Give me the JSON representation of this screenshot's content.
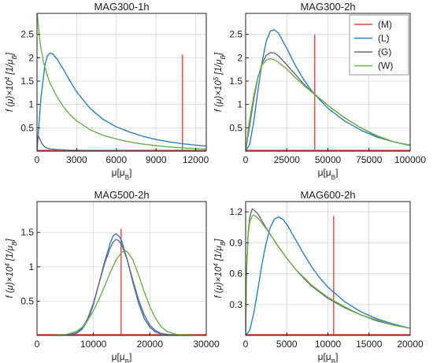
{
  "colors": {
    "M": "#e8453c",
    "L": "#2d7fc9",
    "G": "#6b6b80",
    "W": "#6fb04a",
    "grid": "#d9d9d9",
    "frame": "#222222"
  },
  "legend": {
    "placement": "top-right",
    "panel": 1,
    "entries": [
      {
        "key": "M",
        "label": "(M)"
      },
      {
        "key": "L",
        "label": "(L)"
      },
      {
        "key": "G",
        "label": "(G)"
      },
      {
        "key": "W",
        "label": "(W)"
      }
    ]
  },
  "chart_data": [
    {
      "type": "line",
      "title": "MAG300-1h",
      "xlabel": "μ[μ",
      "xlabel_sub": "B",
      "xlabel_tail": "]",
      "ylabel": "f (μ)×10",
      "ylabel_exp": "4",
      "ylabel_unit": " [1/μ",
      "ylabel_unit_sub": "B",
      "ylabel_tail": "]",
      "xlim": [
        0,
        12800
      ],
      "ylim": [
        0,
        2.95
      ],
      "xticks": [
        0,
        3000,
        6000,
        9000,
        12000
      ],
      "xticklabels": [
        "0",
        "3000",
        "6000",
        "9000",
        "12000"
      ],
      "yticks": [
        0.5,
        1,
        1.5,
        2,
        2.5
      ],
      "yticklabels": [
        "0.5",
        "1",
        "1.5",
        "2",
        "2.5"
      ],
      "grid": true,
      "series": [
        {
          "key": "M",
          "spike": true,
          "x": 11000,
          "height": 2.07
        },
        {
          "key": "L",
          "x": [
            0,
            300,
            600,
            800,
            1000,
            1200,
            1500,
            2000,
            2500,
            3000,
            4000,
            5000,
            6000,
            7000,
            8000,
            9000,
            10000,
            11000,
            12000,
            12800
          ],
          "y": [
            0,
            1.15,
            1.85,
            2.05,
            2.1,
            2.08,
            1.98,
            1.75,
            1.5,
            1.27,
            0.92,
            0.68,
            0.52,
            0.41,
            0.32,
            0.25,
            0.2,
            0.16,
            0.13,
            0.11
          ]
        },
        {
          "key": "G",
          "x": [
            0,
            50,
            100,
            200,
            300,
            400,
            600,
            800,
            1000,
            1500,
            2000,
            3000,
            4000,
            6000,
            8000,
            12800
          ],
          "y": [
            0,
            0.3,
            0.33,
            0.27,
            0.2,
            0.15,
            0.09,
            0.06,
            0.05,
            0.035,
            0.028,
            0.018,
            0.012,
            0.007,
            0.004,
            0.002
          ]
        },
        {
          "key": "W",
          "x": [
            20,
            100,
            200,
            300,
            500,
            800,
            1000,
            1500,
            2000,
            2500,
            3000,
            4000,
            5000,
            6000,
            7000,
            8000,
            9000,
            10000,
            11000,
            12000,
            12800
          ],
          "y": [
            2.95,
            2.7,
            2.4,
            2.2,
            1.9,
            1.6,
            1.45,
            1.17,
            0.95,
            0.78,
            0.65,
            0.46,
            0.34,
            0.26,
            0.2,
            0.15,
            0.12,
            0.09,
            0.07,
            0.055,
            0.045
          ]
        }
      ]
    },
    {
      "type": "line",
      "title": "MAG300-2h",
      "xlabel": "μ[μ",
      "xlabel_sub": "B",
      "xlabel_tail": "]",
      "ylabel": "f (μ)×10",
      "ylabel_exp": "5",
      "ylabel_unit": " [1/μ",
      "ylabel_unit_sub": "B",
      "ylabel_tail": "]",
      "xlim": [
        0,
        100000
      ],
      "ylim": [
        0,
        2.95
      ],
      "xticks": [
        0,
        25000,
        50000,
        75000,
        100000
      ],
      "xticklabels": [
        "0",
        "25000",
        "50000",
        "75000",
        "100000"
      ],
      "yticks": [
        0.5,
        1,
        1.5,
        2,
        2.5
      ],
      "yticklabels": [
        "0.5",
        "1",
        "1.5",
        "2",
        "2.5"
      ],
      "grid": true,
      "series": [
        {
          "key": "M",
          "spike": true,
          "x": 42000,
          "height": 2.5
        },
        {
          "key": "L",
          "x": [
            0,
            2500,
            5000,
            7500,
            10000,
            12500,
            15000,
            17500,
            20000,
            25000,
            30000,
            35000,
            40000,
            45000,
            50000,
            60000,
            70000,
            80000,
            90000,
            100000
          ],
          "y": [
            0,
            0.15,
            0.65,
            1.3,
            1.9,
            2.35,
            2.57,
            2.6,
            2.53,
            2.2,
            1.85,
            1.55,
            1.3,
            1.1,
            0.92,
            0.65,
            0.45,
            0.3,
            0.2,
            0.13
          ]
        },
        {
          "key": "G",
          "x": [
            0,
            2000,
            5000,
            7500,
            10000,
            12500,
            15000,
            17500,
            20000,
            25000,
            30000,
            35000,
            40000,
            50000,
            60000,
            70000,
            80000,
            90000,
            100000
          ],
          "y": [
            0,
            0.45,
            1.12,
            1.58,
            1.88,
            2.05,
            2.11,
            2.1,
            2.04,
            1.85,
            1.65,
            1.45,
            1.28,
            0.98,
            0.72,
            0.5,
            0.32,
            0.2,
            0.12
          ]
        },
        {
          "key": "W",
          "x": [
            0,
            2000,
            5000,
            7500,
            10000,
            12500,
            15000,
            17500,
            20000,
            25000,
            30000,
            35000,
            40000,
            50000,
            60000,
            70000,
            80000,
            90000,
            100000
          ],
          "y": [
            0,
            0.58,
            1.2,
            1.6,
            1.84,
            1.95,
            1.98,
            1.96,
            1.9,
            1.76,
            1.58,
            1.42,
            1.27,
            0.98,
            0.72,
            0.5,
            0.33,
            0.2,
            0.12
          ]
        }
      ]
    },
    {
      "type": "line",
      "title": "MAG500-2h",
      "xlabel": "μ[μ",
      "xlabel_sub": "B",
      "xlabel_tail": "]",
      "ylabel": "f (μ)×10",
      "ylabel_exp": "4",
      "ylabel_unit": " [1/μ",
      "ylabel_unit_sub": "B",
      "ylabel_tail": "]",
      "xlim": [
        0,
        30000
      ],
      "ylim": [
        0,
        1.95
      ],
      "xticks": [
        0,
        10000,
        20000,
        30000
      ],
      "xticklabels": [
        "0",
        "10000",
        "20000",
        "30000"
      ],
      "yticks": [
        0.5,
        1,
        1.5
      ],
      "yticklabels": [
        "0.5",
        "1",
        "1.5"
      ],
      "grid": true,
      "series": [
        {
          "key": "M",
          "spike": true,
          "x": 14900,
          "height": 1.55
        },
        {
          "key": "L",
          "x": [
            5000,
            7000,
            8000,
            9000,
            10000,
            11000,
            12000,
            13000,
            13500,
            14000,
            14500,
            15000,
            16000,
            17000,
            18000,
            19000,
            20000,
            21000,
            22000,
            24000,
            27000
          ],
          "y": [
            0,
            0.03,
            0.09,
            0.22,
            0.45,
            0.76,
            1.08,
            1.35,
            1.45,
            1.48,
            1.45,
            1.38,
            1.1,
            0.77,
            0.47,
            0.25,
            0.12,
            0.05,
            0.02,
            0.005,
            0
          ]
        },
        {
          "key": "G",
          "x": [
            5000,
            7000,
            8000,
            9000,
            10000,
            11000,
            12000,
            13000,
            13500,
            14000,
            14500,
            15000,
            16000,
            17000,
            18000,
            19000,
            20000,
            21000,
            22000,
            24000,
            27000
          ],
          "y": [
            0,
            0.04,
            0.11,
            0.25,
            0.47,
            0.76,
            1.05,
            1.28,
            1.36,
            1.4,
            1.38,
            1.32,
            1.1,
            0.8,
            0.52,
            0.3,
            0.15,
            0.07,
            0.03,
            0.005,
            0
          ]
        },
        {
          "key": "W",
          "x": [
            3000,
            5000,
            7000,
            8000,
            9000,
            10000,
            11000,
            12000,
            13000,
            14000,
            15000,
            15500,
            16000,
            17000,
            18000,
            19000,
            20000,
            21000,
            22000,
            23000,
            25000,
            28000
          ],
          "y": [
            0,
            0.01,
            0.06,
            0.12,
            0.22,
            0.36,
            0.53,
            0.72,
            0.92,
            1.1,
            1.21,
            1.24,
            1.22,
            1.1,
            0.88,
            0.64,
            0.42,
            0.25,
            0.13,
            0.06,
            0.01,
            0
          ]
        }
      ]
    },
    {
      "type": "line",
      "title": "MAG600-2h",
      "xlabel": "μ[μ",
      "xlabel_sub": "B",
      "xlabel_tail": "]",
      "ylabel": "f (μ)×10",
      "ylabel_exp": "4",
      "ylabel_unit": " [1/μ",
      "ylabel_unit_sub": "B",
      "ylabel_tail": "]",
      "xlim": [
        0,
        20000
      ],
      "ylim": [
        0,
        1.3
      ],
      "xticks": [
        0,
        5000,
        10000,
        15000,
        20000
      ],
      "xticklabels": [
        "0",
        "5000",
        "10000",
        "15000",
        "20000"
      ],
      "yticks": [
        0.3,
        0.6,
        0.9,
        1.2
      ],
      "yticklabels": [
        "0.3",
        "0.6",
        "0.9",
        "1.2"
      ],
      "grid": true,
      "series": [
        {
          "key": "M",
          "spike": true,
          "x": 10700,
          "height": 1.16
        },
        {
          "key": "L",
          "x": [
            0,
            500,
            1000,
            1500,
            2000,
            2500,
            3000,
            3500,
            4000,
            4500,
            5000,
            6000,
            7000,
            8000,
            9000,
            10000,
            12000,
            14000,
            16000,
            18000,
            20000
          ],
          "y": [
            0,
            0.05,
            0.22,
            0.45,
            0.7,
            0.9,
            1.05,
            1.13,
            1.15,
            1.13,
            1.08,
            0.94,
            0.8,
            0.67,
            0.56,
            0.47,
            0.33,
            0.23,
            0.16,
            0.11,
            0.07
          ]
        },
        {
          "key": "G",
          "x": [
            0,
            100,
            300,
            500,
            800,
            1000,
            1500,
            2000,
            3000,
            4000,
            5000,
            6000,
            7000,
            8000,
            9000,
            10000,
            12000,
            14000,
            16000,
            18000,
            20000
          ],
          "y": [
            0,
            0.6,
            0.98,
            1.15,
            1.23,
            1.22,
            1.18,
            1.11,
            0.98,
            0.86,
            0.75,
            0.65,
            0.56,
            0.48,
            0.42,
            0.36,
            0.27,
            0.2,
            0.14,
            0.1,
            0.07
          ]
        },
        {
          "key": "W",
          "x": [
            0,
            100,
            300,
            500,
            800,
            1000,
            1500,
            2000,
            3000,
            4000,
            5000,
            6000,
            7000,
            8000,
            9000,
            10000,
            12000,
            14000,
            16000,
            18000,
            20000
          ],
          "y": [
            0,
            0.62,
            0.97,
            1.1,
            1.16,
            1.17,
            1.14,
            1.09,
            0.98,
            0.86,
            0.75,
            0.65,
            0.57,
            0.49,
            0.43,
            0.37,
            0.28,
            0.2,
            0.15,
            0.1,
            0.07
          ]
        }
      ]
    }
  ]
}
